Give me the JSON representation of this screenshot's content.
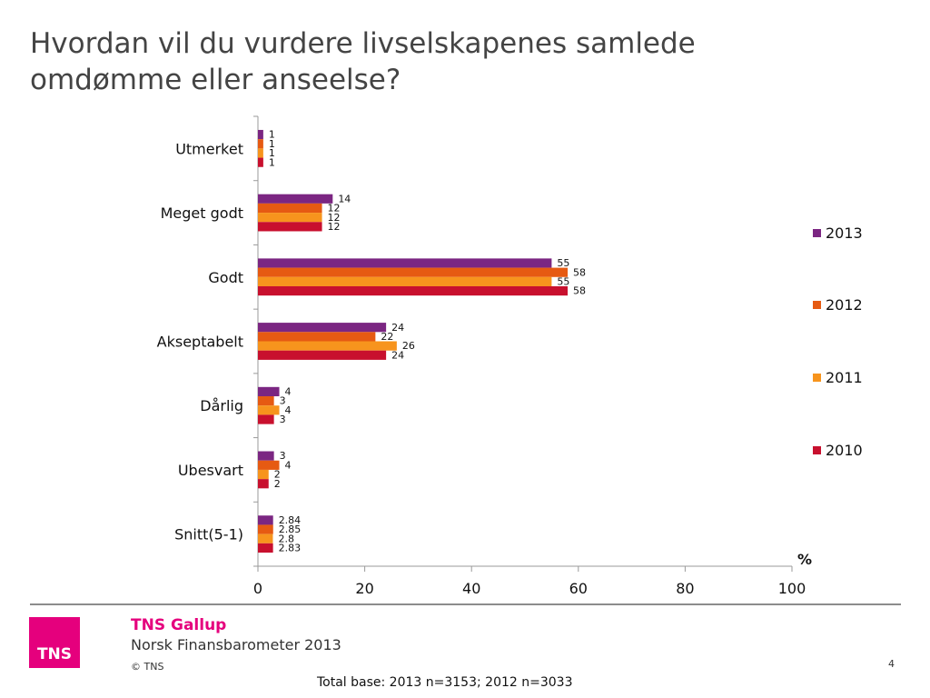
{
  "slide": {
    "title": "Hvordan vil du vurdere livselskapenes samlede omdømme eller anseelse?",
    "footer": {
      "logo_text": "TNS",
      "brand": "TNS Gallup",
      "subtitle": "Norsk Finansbarometer 2013",
      "copyright": "© TNS",
      "page_number": "4",
      "base_note": "Total base: 2013 n=3153; 2012 n=3033"
    }
  },
  "chart_data": {
    "type": "bar",
    "orientation": "horizontal",
    "categories": [
      "Utmerket",
      "Meget godt",
      "Godt",
      "Akseptabelt",
      "Dårlig",
      "Ubesvart",
      "Snitt(5-1)"
    ],
    "series": [
      {
        "name": "2013",
        "color": "#7b2682",
        "values": [
          1,
          14,
          55,
          24,
          4,
          3,
          2.84
        ],
        "labels": [
          "1",
          "14",
          "55",
          "24",
          "4",
          "3",
          "2.84"
        ]
      },
      {
        "name": "2012",
        "color": "#e65a12",
        "values": [
          1,
          12,
          58,
          22,
          3,
          4,
          2.85
        ],
        "labels": [
          "1",
          "12",
          "58",
          "22",
          "3",
          "4",
          "2.85"
        ]
      },
      {
        "name": "2011",
        "color": "#f7941d",
        "values": [
          1,
          12,
          55,
          26,
          4,
          2,
          2.8
        ],
        "labels": [
          "1",
          "12",
          "55",
          "26",
          "4",
          "2",
          "2.8"
        ]
      },
      {
        "name": "2010",
        "color": "#c8102e",
        "values": [
          1,
          12,
          58,
          24,
          3,
          2,
          2.83
        ],
        "labels": [
          "1",
          "12",
          "58",
          "24",
          "3",
          "2",
          "2.83"
        ]
      }
    ],
    "xlim": [
      0,
      100
    ],
    "xticks": [
      0,
      20,
      40,
      60,
      80,
      100
    ],
    "xunit_label": "%",
    "legend_position": "right",
    "grid": false
  }
}
